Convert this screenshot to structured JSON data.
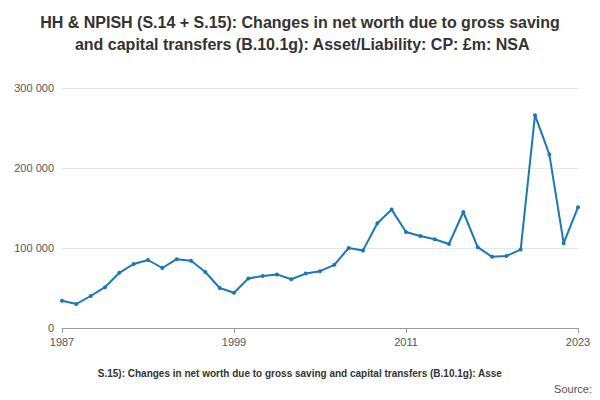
{
  "chart_data": {
    "type": "line",
    "title": "HH & NPISH (S.14 + S.15): Changes in net worth due to gross saving and capital transfers (B.10.1g): Asset/Liability: CP: £m: NSA",
    "footer": "S.15): Changes in net worth due to gross saving and capital transfers (B.10.1g): Asse",
    "source": "Source:",
    "x": [
      1987,
      1988,
      1989,
      1990,
      1991,
      1992,
      1993,
      1994,
      1995,
      1996,
      1997,
      1998,
      1999,
      2000,
      2001,
      2002,
      2003,
      2004,
      2005,
      2006,
      2007,
      2008,
      2009,
      2010,
      2011,
      2012,
      2013,
      2014,
      2015,
      2016,
      2017,
      2018,
      2019,
      2020,
      2021,
      2022,
      2023
    ],
    "values": [
      34000,
      30000,
      40000,
      51000,
      69000,
      80000,
      85000,
      75000,
      86000,
      84000,
      70000,
      50000,
      44000,
      62000,
      65000,
      67000,
      61000,
      68000,
      71000,
      79000,
      100000,
      97000,
      131000,
      148000,
      120000,
      115000,
      111000,
      105000,
      145000,
      101000,
      89000,
      90000,
      98000,
      266000,
      217000,
      106000,
      151000
    ],
    "color": "#1a78b6",
    "marker": "circle",
    "xlim": [
      1987,
      2023
    ],
    "xticks": [
      1987,
      1999,
      2011,
      2023
    ],
    "ylim": [
      0,
      300000
    ],
    "yticks": [
      0,
      {
        "value": 100000,
        "label": "100 000"
      },
      {
        "value": 200000,
        "label": "200 000"
      },
      {
        "value": 300000,
        "label": "300 000"
      }
    ],
    "grid": true
  }
}
